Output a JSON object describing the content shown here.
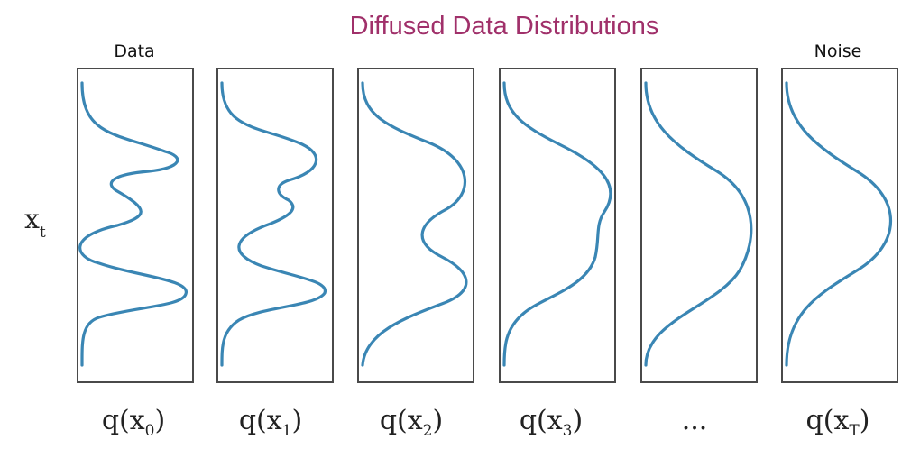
{
  "title": "Diffused Data Distributions",
  "left_header": "Data",
  "right_header": "Noise",
  "axis_label": {
    "main": "x",
    "sub": "t"
  },
  "panels": [
    {
      "label": {
        "prefix": "q(x",
        "sub": "0",
        "suffix": ")"
      }
    },
    {
      "label": {
        "prefix": "q(x",
        "sub": "1",
        "suffix": ")"
      }
    },
    {
      "label": {
        "prefix": "q(x",
        "sub": "2",
        "suffix": ")"
      }
    },
    {
      "label": {
        "prefix": "q(x",
        "sub": "3",
        "suffix": ")"
      }
    },
    {
      "label": {
        "prefix": "...",
        "sub": "",
        "suffix": ""
      }
    },
    {
      "label": {
        "prefix": "q(x",
        "sub": "T",
        "suffix": ")"
      }
    }
  ],
  "colors": {
    "title": "#a0306a",
    "curve": "#3a86b4",
    "frame": "#4a4a4a"
  }
}
